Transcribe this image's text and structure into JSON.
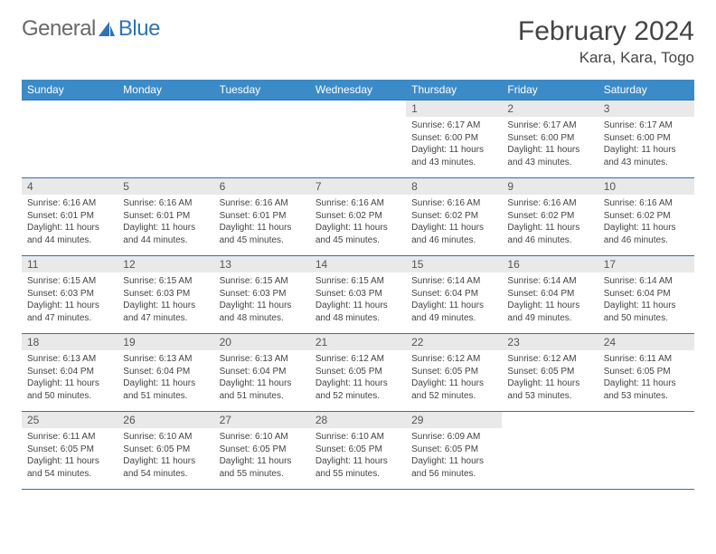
{
  "brand": {
    "part1": "General",
    "part2": "Blue"
  },
  "title": "February 2024",
  "location": "Kara, Kara, Togo",
  "colors": {
    "header_bg": "#3b8bc9",
    "border": "#2e74b5",
    "daynum_bg": "#e9e9e9",
    "text": "#444444",
    "brand_gray": "#6a6a6a",
    "brand_blue": "#2e74b5"
  },
  "weekdays": [
    "Sunday",
    "Monday",
    "Tuesday",
    "Wednesday",
    "Thursday",
    "Friday",
    "Saturday"
  ],
  "weeks": [
    [
      null,
      null,
      null,
      null,
      {
        "n": "1",
        "sr": "6:17 AM",
        "ss": "6:00 PM",
        "dl": "11 hours and 43 minutes."
      },
      {
        "n": "2",
        "sr": "6:17 AM",
        "ss": "6:00 PM",
        "dl": "11 hours and 43 minutes."
      },
      {
        "n": "3",
        "sr": "6:17 AM",
        "ss": "6:00 PM",
        "dl": "11 hours and 43 minutes."
      }
    ],
    [
      {
        "n": "4",
        "sr": "6:16 AM",
        "ss": "6:01 PM",
        "dl": "11 hours and 44 minutes."
      },
      {
        "n": "5",
        "sr": "6:16 AM",
        "ss": "6:01 PM",
        "dl": "11 hours and 44 minutes."
      },
      {
        "n": "6",
        "sr": "6:16 AM",
        "ss": "6:01 PM",
        "dl": "11 hours and 45 minutes."
      },
      {
        "n": "7",
        "sr": "6:16 AM",
        "ss": "6:02 PM",
        "dl": "11 hours and 45 minutes."
      },
      {
        "n": "8",
        "sr": "6:16 AM",
        "ss": "6:02 PM",
        "dl": "11 hours and 46 minutes."
      },
      {
        "n": "9",
        "sr": "6:16 AM",
        "ss": "6:02 PM",
        "dl": "11 hours and 46 minutes."
      },
      {
        "n": "10",
        "sr": "6:16 AM",
        "ss": "6:02 PM",
        "dl": "11 hours and 46 minutes."
      }
    ],
    [
      {
        "n": "11",
        "sr": "6:15 AM",
        "ss": "6:03 PM",
        "dl": "11 hours and 47 minutes."
      },
      {
        "n": "12",
        "sr": "6:15 AM",
        "ss": "6:03 PM",
        "dl": "11 hours and 47 minutes."
      },
      {
        "n": "13",
        "sr": "6:15 AM",
        "ss": "6:03 PM",
        "dl": "11 hours and 48 minutes."
      },
      {
        "n": "14",
        "sr": "6:15 AM",
        "ss": "6:03 PM",
        "dl": "11 hours and 48 minutes."
      },
      {
        "n": "15",
        "sr": "6:14 AM",
        "ss": "6:04 PM",
        "dl": "11 hours and 49 minutes."
      },
      {
        "n": "16",
        "sr": "6:14 AM",
        "ss": "6:04 PM",
        "dl": "11 hours and 49 minutes."
      },
      {
        "n": "17",
        "sr": "6:14 AM",
        "ss": "6:04 PM",
        "dl": "11 hours and 50 minutes."
      }
    ],
    [
      {
        "n": "18",
        "sr": "6:13 AM",
        "ss": "6:04 PM",
        "dl": "11 hours and 50 minutes."
      },
      {
        "n": "19",
        "sr": "6:13 AM",
        "ss": "6:04 PM",
        "dl": "11 hours and 51 minutes."
      },
      {
        "n": "20",
        "sr": "6:13 AM",
        "ss": "6:04 PM",
        "dl": "11 hours and 51 minutes."
      },
      {
        "n": "21",
        "sr": "6:12 AM",
        "ss": "6:05 PM",
        "dl": "11 hours and 52 minutes."
      },
      {
        "n": "22",
        "sr": "6:12 AM",
        "ss": "6:05 PM",
        "dl": "11 hours and 52 minutes."
      },
      {
        "n": "23",
        "sr": "6:12 AM",
        "ss": "6:05 PM",
        "dl": "11 hours and 53 minutes."
      },
      {
        "n": "24",
        "sr": "6:11 AM",
        "ss": "6:05 PM",
        "dl": "11 hours and 53 minutes."
      }
    ],
    [
      {
        "n": "25",
        "sr": "6:11 AM",
        "ss": "6:05 PM",
        "dl": "11 hours and 54 minutes."
      },
      {
        "n": "26",
        "sr": "6:10 AM",
        "ss": "6:05 PM",
        "dl": "11 hours and 54 minutes."
      },
      {
        "n": "27",
        "sr": "6:10 AM",
        "ss": "6:05 PM",
        "dl": "11 hours and 55 minutes."
      },
      {
        "n": "28",
        "sr": "6:10 AM",
        "ss": "6:05 PM",
        "dl": "11 hours and 55 minutes."
      },
      {
        "n": "29",
        "sr": "6:09 AM",
        "ss": "6:05 PM",
        "dl": "11 hours and 56 minutes."
      },
      null,
      null
    ]
  ],
  "labels": {
    "sunrise": "Sunrise:",
    "sunset": "Sunset:",
    "daylight": "Daylight:"
  }
}
